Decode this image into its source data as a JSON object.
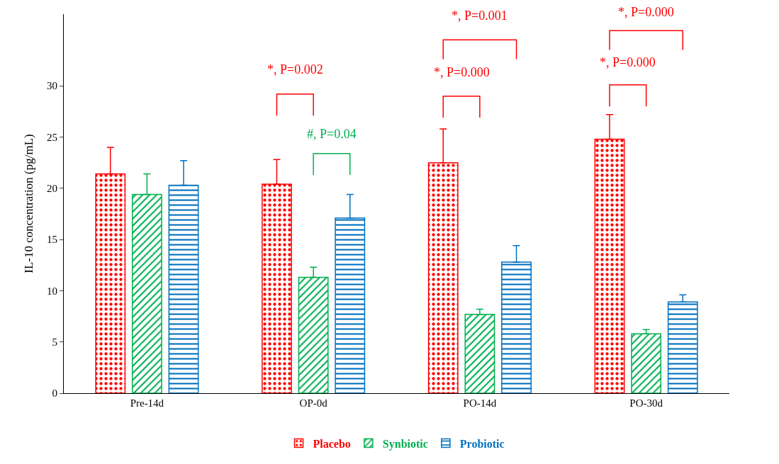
{
  "chart_data": {
    "type": "bar",
    "ylabel": "IL-10 concentration (pg/mL)",
    "categories": [
      "Pre-14d",
      "OP-0d",
      "PO-14d",
      "PO-30d"
    ],
    "series": [
      {
        "name": "Placebo",
        "color": "#ff0000",
        "values": [
          21.4,
          20.4,
          22.5,
          24.8
        ],
        "errors": [
          [
            21.4,
            24.0
          ],
          [
            20.4,
            22.8
          ],
          [
            22.5,
            25.8
          ],
          [
            24.8,
            27.2
          ]
        ]
      },
      {
        "name": "Synbiotic",
        "color": "#00b050",
        "values": [
          19.4,
          11.3,
          7.7,
          5.8
        ],
        "errors": [
          [
            19.4,
            21.4
          ],
          [
            11.3,
            12.3
          ],
          [
            7.7,
            8.2
          ],
          [
            5.8,
            6.2
          ]
        ]
      },
      {
        "name": "Probiotic",
        "color": "#0070c0",
        "values": [
          20.3,
          17.1,
          12.8,
          8.9
        ],
        "errors": [
          [
            20.3,
            22.7
          ],
          [
            17.1,
            19.4
          ],
          [
            12.8,
            14.4
          ],
          [
            8.9,
            9.6
          ]
        ]
      }
    ],
    "ylim": [
      0,
      37
    ],
    "yticks": [
      0,
      5,
      10,
      15,
      20,
      25,
      30
    ],
    "grid": false,
    "legend": "bottom",
    "annotations": [
      "*, P=0.002",
      "#, P=0.04",
      "*, P=0.000",
      "*, P=0.001",
      "*, P=0.000",
      "*, P=0.000"
    ]
  }
}
